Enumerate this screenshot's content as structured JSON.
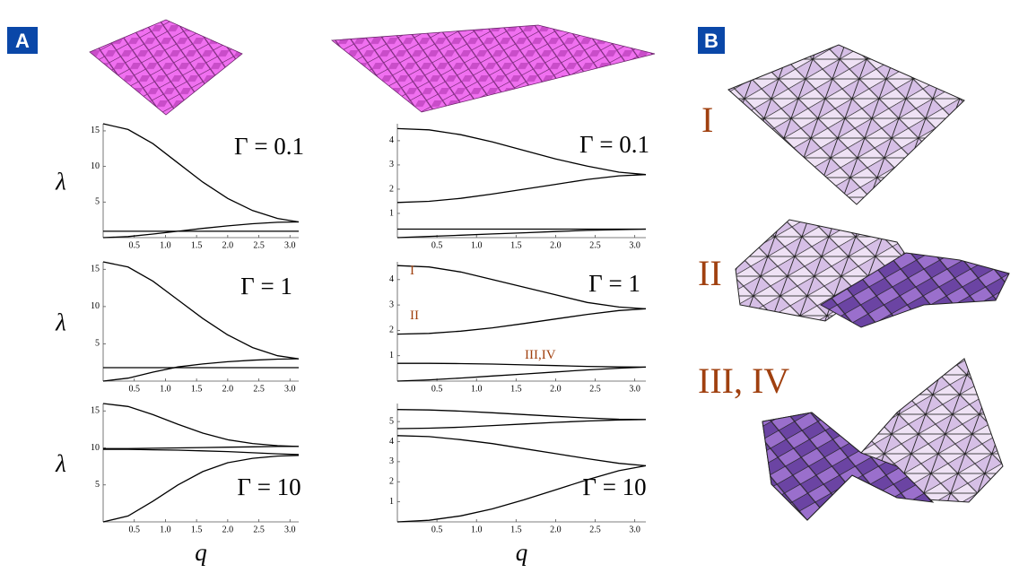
{
  "panels": {
    "a": "A",
    "b": "B"
  },
  "modes": [
    "I",
    "II",
    "III, IV"
  ],
  "chart_data": [
    {
      "type": "line",
      "annotation": "Γ = 0.1",
      "ylabel": "λ",
      "x": [
        0,
        0.4,
        0.8,
        1.2,
        1.6,
        2.0,
        2.4,
        2.8,
        3.14
      ],
      "xlim": [
        0,
        3.14
      ],
      "ylim": [
        0,
        16
      ],
      "xticks": [
        0.5,
        {
          "value": 1,
          "label": "1.0"
        },
        1.5,
        {
          "value": 2,
          "label": "2.0"
        },
        2.5,
        {
          "value": 3,
          "label": "3.0"
        }
      ],
      "yticks": [
        5,
        10,
        15
      ],
      "series": [
        {
          "color": "#000000",
          "values": [
            16,
            15.2,
            13.2,
            10.5,
            7.8,
            5.5,
            3.8,
            2.7,
            2.2
          ]
        },
        {
          "color": "#000000",
          "values": [
            0.9,
            0.9,
            0.9,
            0.9,
            0.9,
            0.9,
            0.9,
            0.9,
            0.9
          ]
        },
        {
          "color": "#000000",
          "values": [
            0,
            0.15,
            0.5,
            0.9,
            1.3,
            1.65,
            1.95,
            2.15,
            2.2
          ]
        }
      ]
    },
    {
      "type": "line",
      "annotation": "Γ = 0.1",
      "x": [
        0,
        0.4,
        0.8,
        1.2,
        1.6,
        2.0,
        2.4,
        2.8,
        3.14
      ],
      "xlim": [
        0,
        3.14
      ],
      "ylim": [
        0,
        4.7
      ],
      "xticks": [
        0.5,
        {
          "value": 1,
          "label": "1.0"
        },
        1.5,
        {
          "value": 2,
          "label": "2.0"
        },
        2.5,
        {
          "value": 3,
          "label": "3.0"
        }
      ],
      "yticks": [
        1,
        2,
        3,
        4
      ],
      "series": [
        {
          "color": "#000000",
          "values": [
            4.5,
            4.45,
            4.25,
            3.95,
            3.6,
            3.25,
            2.95,
            2.7,
            2.6
          ]
        },
        {
          "color": "#000000",
          "values": [
            1.45,
            1.5,
            1.62,
            1.8,
            2.0,
            2.2,
            2.4,
            2.55,
            2.6
          ]
        },
        {
          "color": "#000000",
          "values": [
            0.35,
            0.35,
            0.35,
            0.35,
            0.35,
            0.35,
            0.35,
            0.35,
            0.35
          ]
        },
        {
          "color": "#000000",
          "values": [
            0,
            0.05,
            0.1,
            0.15,
            0.2,
            0.25,
            0.3,
            0.33,
            0.35
          ]
        }
      ]
    },
    {
      "type": "line",
      "annotation": "Γ = 1",
      "ylabel": "λ",
      "x": [
        0,
        0.4,
        0.8,
        1.2,
        1.6,
        2.0,
        2.4,
        2.8,
        3.14
      ],
      "xlim": [
        0,
        3.14
      ],
      "ylim": [
        0,
        16
      ],
      "xticks": [
        0.5,
        {
          "value": 1,
          "label": "1.0"
        },
        1.5,
        {
          "value": 2,
          "label": "2.0"
        },
        2.5,
        {
          "value": 3,
          "label": "3.0"
        }
      ],
      "yticks": [
        5,
        10,
        15
      ],
      "series": [
        {
          "color": "#000000",
          "values": [
            16,
            15.3,
            13.4,
            10.9,
            8.4,
            6.2,
            4.5,
            3.4,
            3.0
          ]
        },
        {
          "color": "#000000",
          "values": [
            1.8,
            1.8,
            1.8,
            1.8,
            1.8,
            1.8,
            1.8,
            1.8,
            1.8
          ]
        },
        {
          "color": "#000000",
          "values": [
            0,
            0.4,
            1.2,
            1.9,
            2.3,
            2.6,
            2.8,
            2.95,
            3.0
          ]
        }
      ]
    },
    {
      "type": "line",
      "annotation": "Γ = 1",
      "labels": [
        "I",
        "II",
        "III,IV"
      ],
      "x": [
        0,
        0.4,
        0.8,
        1.2,
        1.6,
        2.0,
        2.4,
        2.8,
        3.14
      ],
      "xlim": [
        0,
        3.14
      ],
      "ylim": [
        0,
        4.7
      ],
      "xticks": [
        0.5,
        {
          "value": 1,
          "label": "1.0"
        },
        1.5,
        {
          "value": 2,
          "label": "2.0"
        },
        2.5,
        {
          "value": 3,
          "label": "3.0"
        }
      ],
      "yticks": [
        1,
        2,
        3,
        4
      ],
      "series": [
        {
          "color": "#000000",
          "values": [
            4.55,
            4.5,
            4.3,
            4.0,
            3.7,
            3.4,
            3.1,
            2.92,
            2.85
          ]
        },
        {
          "color": "#000000",
          "values": [
            1.85,
            1.88,
            1.97,
            2.1,
            2.27,
            2.45,
            2.63,
            2.78,
            2.85
          ]
        },
        {
          "color": "#000000",
          "values": [
            0.7,
            0.7,
            0.69,
            0.67,
            0.64,
            0.61,
            0.58,
            0.56,
            0.55
          ]
        },
        {
          "color": "#000000",
          "values": [
            0,
            0.05,
            0.12,
            0.2,
            0.28,
            0.36,
            0.44,
            0.51,
            0.55
          ]
        }
      ]
    },
    {
      "type": "line",
      "annotation": "Γ = 10",
      "ylabel": "λ",
      "xlabel": "q",
      "x": [
        0,
        0.4,
        0.8,
        1.2,
        1.6,
        2.0,
        2.4,
        2.8,
        3.14
      ],
      "xlim": [
        0,
        3.14
      ],
      "ylim": [
        0,
        16
      ],
      "xticks": [
        0.5,
        {
          "value": 1,
          "label": "1.0"
        },
        1.5,
        {
          "value": 2,
          "label": "2.0"
        },
        2.5,
        {
          "value": 3,
          "label": "3.0"
        }
      ],
      "yticks": [
        5,
        10,
        15
      ],
      "series": [
        {
          "color": "#000000",
          "values": [
            16,
            15.6,
            14.5,
            13.2,
            12,
            11.1,
            10.6,
            10.3,
            10.2
          ]
        },
        {
          "color": "#000000",
          "values": [
            9.9,
            9.9,
            9.95,
            10,
            10.05,
            10.1,
            10.15,
            10.2,
            10.2
          ]
        },
        {
          "color": "#000000",
          "values": [
            9.8,
            9.8,
            9.75,
            9.7,
            9.6,
            9.5,
            9.35,
            9.2,
            9.1
          ]
        },
        {
          "color": "#000000",
          "values": [
            0,
            0.8,
            2.8,
            5,
            6.8,
            8,
            8.6,
            8.9,
            9
          ]
        }
      ]
    },
    {
      "type": "line",
      "annotation": "Γ = 10",
      "xlabel": "q",
      "x": [
        0,
        0.4,
        0.8,
        1.2,
        1.6,
        2.0,
        2.4,
        2.8,
        3.14
      ],
      "xlim": [
        0,
        3.14
      ],
      "ylim": [
        0,
        5.9
      ],
      "xticks": [
        0.5,
        {
          "value": 1,
          "label": "1.0"
        },
        1.5,
        {
          "value": 2,
          "label": "2.0"
        },
        2.5,
        {
          "value": 3,
          "label": "3.0"
        }
      ],
      "yticks": [
        1,
        2,
        3,
        4,
        5
      ],
      "series": [
        {
          "color": "#000000",
          "values": [
            5.6,
            5.58,
            5.52,
            5.44,
            5.35,
            5.26,
            5.18,
            5.12,
            5.1
          ]
        },
        {
          "color": "#000000",
          "values": [
            4.65,
            4.67,
            4.72,
            4.8,
            4.88,
            4.96,
            5.03,
            5.08,
            5.1
          ]
        },
        {
          "color": "#000000",
          "values": [
            4.3,
            4.25,
            4.1,
            3.9,
            3.65,
            3.4,
            3.15,
            2.92,
            2.8
          ]
        },
        {
          "color": "#000000",
          "values": [
            0,
            0.08,
            0.3,
            0.65,
            1.1,
            1.6,
            2.1,
            2.55,
            2.8
          ]
        }
      ]
    }
  ]
}
